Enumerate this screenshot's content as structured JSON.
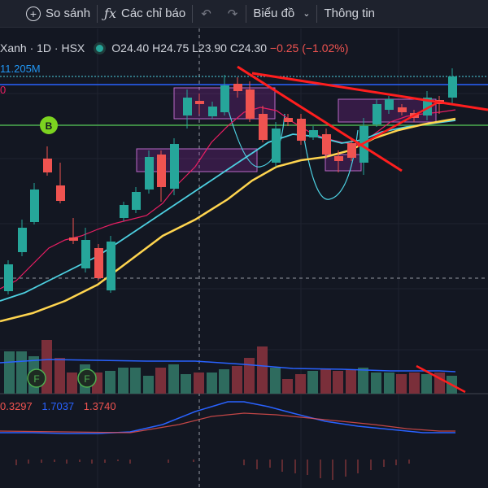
{
  "toolbar": {
    "compare_label": "So sánh",
    "indicators_label": "Các chỉ báo",
    "chart_type_label": "Biểu đồ",
    "info_label": "Thông tin",
    "icons": [
      "plus-circle-icon",
      "fx-icon",
      "undo-icon",
      "redo-icon",
      "chevron-down-icon"
    ]
  },
  "legend": {
    "symbol": "Xanh · 1D · HSX",
    "open": "O24.40",
    "high": "H24.75",
    "low": "L23.90",
    "close": "C24.30",
    "change": "−0.25 (−1.02%)"
  },
  "volume_label": "11.205M",
  "zero_label": "0",
  "indicator_values": {
    "v1": "0.3297",
    "v2": "1.7037",
    "v3": "1.3740"
  },
  "markers": {
    "b_label": "B",
    "f_label": "F"
  },
  "colors": {
    "background": "#131722",
    "up": "#26a69a",
    "down": "#ef5350",
    "ma_fast": "#e91e63",
    "ma_mid": "#4dd0e1",
    "ma_slow": "#ffd54f",
    "trend": "#ff1e1e",
    "box": "#9c27b0"
  }
}
